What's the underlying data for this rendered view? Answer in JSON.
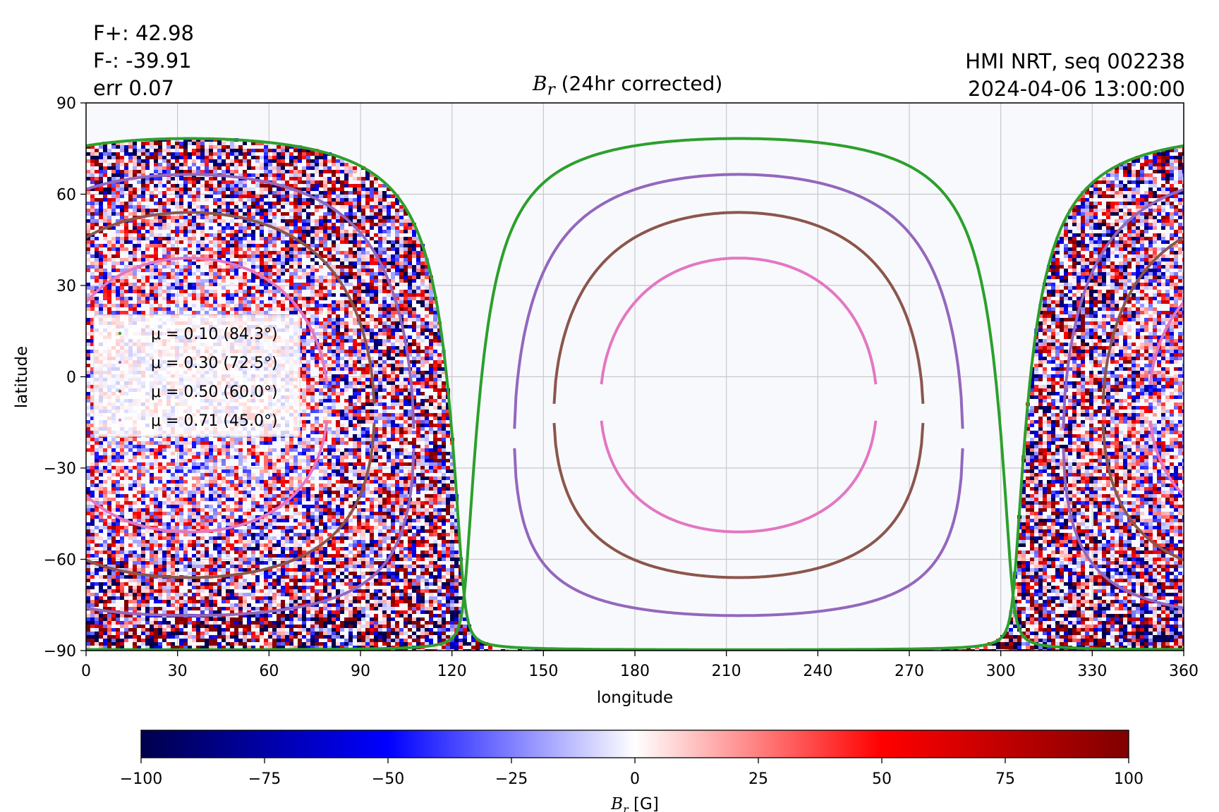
{
  "header": {
    "flux_positive": "F+: 42.98",
    "flux_negative": "F-: -39.91",
    "error": "err 0.07",
    "source": "HMI NRT, seq 002238",
    "timestamp": "2024-04-06 13:00:00",
    "title_symbol": "B",
    "title_subscript": "r",
    "title_rest": " (24hr corrected)"
  },
  "chart_data": {
    "type": "heatmap",
    "title": "B_r (24hr corrected)",
    "xlabel": "longitude",
    "ylabel": "latitude",
    "xlim": [
      0,
      360
    ],
    "ylim": [
      -90,
      90
    ],
    "xticks": [
      "0",
      "30",
      "60",
      "90",
      "120",
      "150",
      "180",
      "210",
      "240",
      "270",
      "300",
      "330",
      "360"
    ],
    "yticks": [
      "90",
      "60",
      "30",
      "0",
      "−30",
      "−60",
      "−90"
    ],
    "grid": true,
    "legend_position": "center-left",
    "visible_disk_center": {
      "longitude": 34,
      "latitude": -6
    },
    "contours": [
      {
        "name": "μ = 0.10 (84.3°)",
        "angle_deg": 84.3,
        "color": "#2ca02c"
      },
      {
        "name": "μ = 0.30 (72.5°)",
        "angle_deg": 72.5,
        "color": "#9467bd"
      },
      {
        "name": "μ = 0.50 (60.0°)",
        "angle_deg": 60.0,
        "color": "#8c564b"
      },
      {
        "name": "μ = 0.71 (45.0°)",
        "angle_deg": 45.0,
        "color": "#e377c2"
      }
    ],
    "colorbar": {
      "label_symbol": "B",
      "label_subscript": "r",
      "label_unit": " [G]",
      "range": [
        -100,
        100
      ],
      "colormap": "seismic",
      "colors": [
        "#00004c",
        "#0000ff",
        "#ffffff",
        "#ff0000",
        "#800000"
      ],
      "ticks": [
        "−100",
        "−75",
        "−50",
        "−25",
        "0",
        "25",
        "50",
        "75",
        "100"
      ]
    }
  }
}
